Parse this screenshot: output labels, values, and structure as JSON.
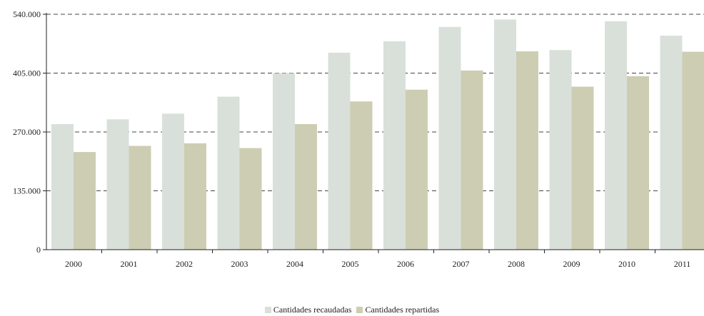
{
  "chart_data": {
    "type": "bar",
    "categories": [
      "2000",
      "2001",
      "2002",
      "2003",
      "2004",
      "2005",
      "2006",
      "2007",
      "2008",
      "2009",
      "2010",
      "2011"
    ],
    "series": [
      {
        "name": "Cantidades recaudadas",
        "values": [
          288000,
          299000,
          312000,
          351000,
          405000,
          452000,
          478000,
          511000,
          528000,
          458000,
          524000,
          491000
        ],
        "color": "#d9e0da"
      },
      {
        "name": "Cantidades repartidas",
        "values": [
          224000,
          238000,
          244000,
          233000,
          288000,
          340000,
          367000,
          411000,
          455000,
          374000,
          398000,
          454000
        ],
        "color": "#cdcdb3"
      }
    ],
    "yticks": [
      "0",
      "135.000",
      "270.000",
      "405.000",
      "540.000"
    ],
    "ylim": [
      0,
      540000
    ],
    "ytick_values": [
      0,
      135000,
      270000,
      405000,
      540000
    ],
    "grid": "horizontal-dashed",
    "legend_position": "bottom-center"
  }
}
